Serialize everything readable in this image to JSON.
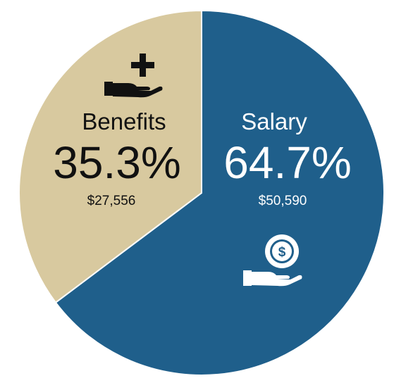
{
  "chart_data": {
    "type": "pie",
    "slices": [
      {
        "label": "Salary",
        "value": 50590,
        "percent_label": "64.7%",
        "amount_label": "$50,590",
        "color": "#1f5f8b",
        "icon": "money-hand-icon"
      },
      {
        "label": "Benefits",
        "value": 27556,
        "percent_label": "35.3%",
        "amount_label": "$27,556",
        "color": "#d8c99f",
        "icon": "medical-hand-icon"
      }
    ],
    "title": ""
  }
}
